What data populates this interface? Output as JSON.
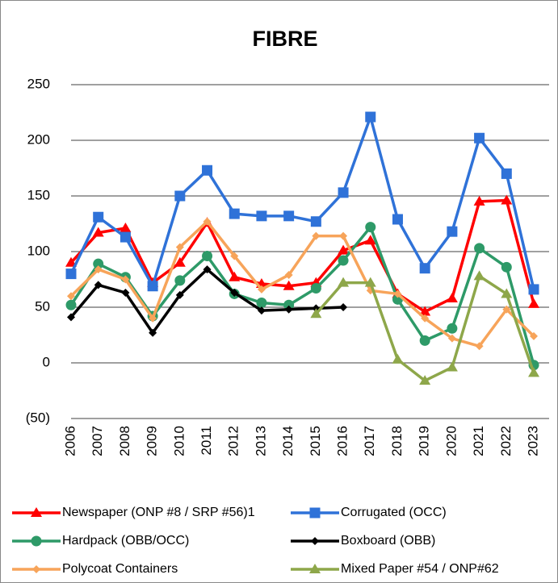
{
  "chart_data": {
    "type": "line",
    "title": "FIBRE",
    "categories": [
      "2006",
      "2007",
      "2008",
      "2009",
      "2010",
      "2011",
      "2012",
      "2013",
      "2014",
      "2015",
      "2016",
      "2017",
      "2018",
      "2019",
      "2020",
      "2021",
      "2022",
      "2023"
    ],
    "ylim": [
      -50,
      250
    ],
    "yticks": [
      {
        "value": -50,
        "label": "(50)"
      },
      0,
      50,
      100,
      150,
      200,
      250
    ],
    "grid": true,
    "series": [
      {
        "name": "Newspaper (ONP #8 / SRP #56)1",
        "color": "#ff0000",
        "marker": "triangle",
        "values": [
          90,
          117,
          121,
          72,
          90,
          126,
          77,
          71,
          69,
          72,
          101,
          110,
          62,
          46,
          58,
          145,
          146,
          53
        ]
      },
      {
        "name": "Corrugated (OCC)",
        "color": "#2f72d8",
        "marker": "square",
        "values": [
          80,
          131,
          113,
          69,
          150,
          173,
          134,
          132,
          132,
          127,
          153,
          221,
          129,
          85,
          118,
          202,
          170,
          66
        ]
      },
      {
        "name": "Hardpack (OBB/OCC)",
        "color": "#2e9a68",
        "marker": "circle",
        "values": [
          52,
          89,
          77,
          42,
          74,
          96,
          62,
          54,
          52,
          67,
          92,
          122,
          57,
          20,
          31,
          103,
          86,
          -2
        ]
      },
      {
        "name": "Boxboard (OBB)",
        "color": "#000000",
        "marker": "diamond",
        "values": [
          41,
          70,
          63,
          27,
          61,
          84,
          63,
          47,
          48,
          49,
          50,
          null,
          null,
          null,
          null,
          null,
          null,
          null
        ]
      },
      {
        "name": "Polycoat Containers",
        "color": "#f7a45a",
        "marker": "diamond",
        "values": [
          60,
          84,
          75,
          40,
          104,
          127,
          96,
          66,
          79,
          114,
          114,
          65,
          62,
          40,
          22,
          15,
          48,
          24
        ]
      },
      {
        "name": "Mixed Paper #54 / ONP#62",
        "color": "#8ea74a",
        "marker": "triangle",
        "values": [
          null,
          null,
          null,
          null,
          null,
          null,
          null,
          null,
          null,
          44,
          72,
          72,
          3,
          -16,
          -4,
          78,
          62,
          -9
        ]
      }
    ]
  }
}
